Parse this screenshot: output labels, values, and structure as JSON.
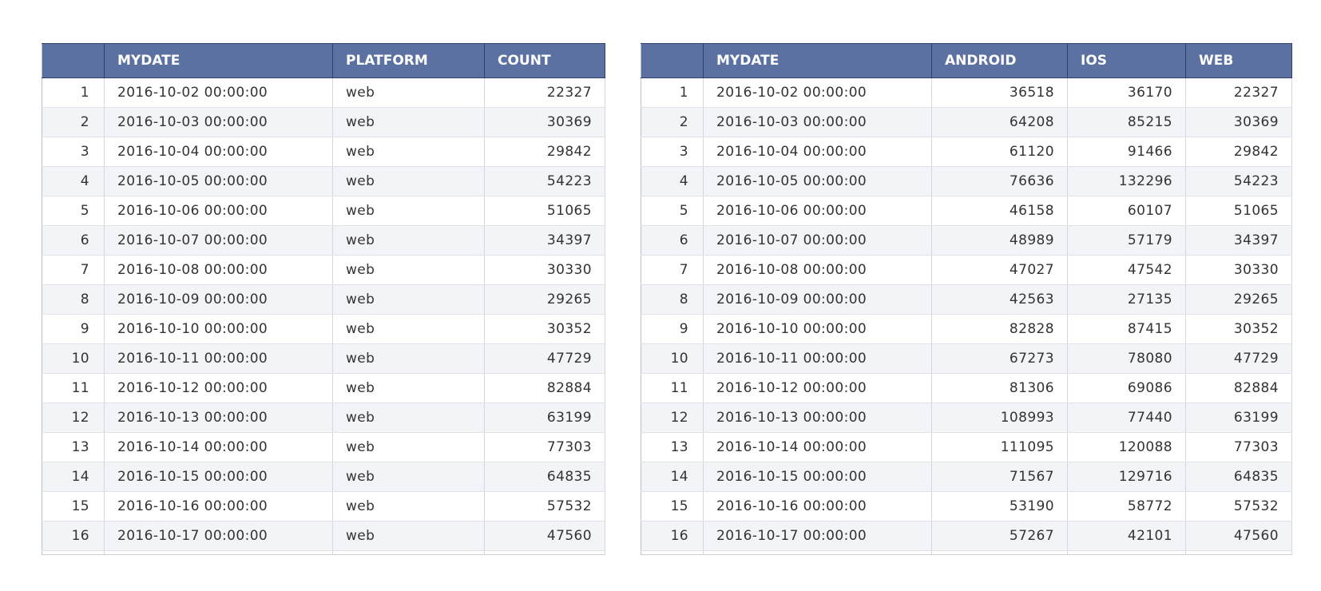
{
  "left_table": {
    "columns": [
      "",
      "MYDATE",
      "PLATFORM",
      "COUNT"
    ],
    "rows": [
      {
        "idx": "1",
        "mydate": "2016-10-02 00:00:00",
        "platform": "web",
        "count": "22327"
      },
      {
        "idx": "2",
        "mydate": "2016-10-03 00:00:00",
        "platform": "web",
        "count": "30369"
      },
      {
        "idx": "3",
        "mydate": "2016-10-04 00:00:00",
        "platform": "web",
        "count": "29842"
      },
      {
        "idx": "4",
        "mydate": "2016-10-05 00:00:00",
        "platform": "web",
        "count": "54223"
      },
      {
        "idx": "5",
        "mydate": "2016-10-06 00:00:00",
        "platform": "web",
        "count": "51065"
      },
      {
        "idx": "6",
        "mydate": "2016-10-07 00:00:00",
        "platform": "web",
        "count": "34397"
      },
      {
        "idx": "7",
        "mydate": "2016-10-08 00:00:00",
        "platform": "web",
        "count": "30330"
      },
      {
        "idx": "8",
        "mydate": "2016-10-09 00:00:00",
        "platform": "web",
        "count": "29265"
      },
      {
        "idx": "9",
        "mydate": "2016-10-10 00:00:00",
        "platform": "web",
        "count": "30352"
      },
      {
        "idx": "10",
        "mydate": "2016-10-11 00:00:00",
        "platform": "web",
        "count": "47729"
      },
      {
        "idx": "11",
        "mydate": "2016-10-12 00:00:00",
        "platform": "web",
        "count": "82884"
      },
      {
        "idx": "12",
        "mydate": "2016-10-13 00:00:00",
        "platform": "web",
        "count": "63199"
      },
      {
        "idx": "13",
        "mydate": "2016-10-14 00:00:00",
        "platform": "web",
        "count": "77303"
      },
      {
        "idx": "14",
        "mydate": "2016-10-15 00:00:00",
        "platform": "web",
        "count": "64835"
      },
      {
        "idx": "15",
        "mydate": "2016-10-16 00:00:00",
        "platform": "web",
        "count": "57532"
      },
      {
        "idx": "16",
        "mydate": "2016-10-17 00:00:00",
        "platform": "web",
        "count": "47560"
      }
    ]
  },
  "right_table": {
    "columns": [
      "",
      "MYDATE",
      "ANDROID",
      "IOS",
      "WEB"
    ],
    "rows": [
      {
        "idx": "1",
        "mydate": "2016-10-02 00:00:00",
        "android": "36518",
        "ios": "36170",
        "web": "22327"
      },
      {
        "idx": "2",
        "mydate": "2016-10-03 00:00:00",
        "android": "64208",
        "ios": "85215",
        "web": "30369"
      },
      {
        "idx": "3",
        "mydate": "2016-10-04 00:00:00",
        "android": "61120",
        "ios": "91466",
        "web": "29842"
      },
      {
        "idx": "4",
        "mydate": "2016-10-05 00:00:00",
        "android": "76636",
        "ios": "132296",
        "web": "54223"
      },
      {
        "idx": "5",
        "mydate": "2016-10-06 00:00:00",
        "android": "46158",
        "ios": "60107",
        "web": "51065"
      },
      {
        "idx": "6",
        "mydate": "2016-10-07 00:00:00",
        "android": "48989",
        "ios": "57179",
        "web": "34397"
      },
      {
        "idx": "7",
        "mydate": "2016-10-08 00:00:00",
        "android": "47027",
        "ios": "47542",
        "web": "30330"
      },
      {
        "idx": "8",
        "mydate": "2016-10-09 00:00:00",
        "android": "42563",
        "ios": "27135",
        "web": "29265"
      },
      {
        "idx": "9",
        "mydate": "2016-10-10 00:00:00",
        "android": "82828",
        "ios": "87415",
        "web": "30352"
      },
      {
        "idx": "10",
        "mydate": "2016-10-11 00:00:00",
        "android": "67273",
        "ios": "78080",
        "web": "47729"
      },
      {
        "idx": "11",
        "mydate": "2016-10-12 00:00:00",
        "android": "81306",
        "ios": "69086",
        "web": "82884"
      },
      {
        "idx": "12",
        "mydate": "2016-10-13 00:00:00",
        "android": "108993",
        "ios": "77440",
        "web": "63199"
      },
      {
        "idx": "13",
        "mydate": "2016-10-14 00:00:00",
        "android": "111095",
        "ios": "120088",
        "web": "77303"
      },
      {
        "idx": "14",
        "mydate": "2016-10-15 00:00:00",
        "android": "71567",
        "ios": "129716",
        "web": "64835"
      },
      {
        "idx": "15",
        "mydate": "2016-10-16 00:00:00",
        "android": "53190",
        "ios": "58772",
        "web": "57532"
      },
      {
        "idx": "16",
        "mydate": "2016-10-17 00:00:00",
        "android": "57267",
        "ios": "42101",
        "web": "47560"
      }
    ]
  }
}
